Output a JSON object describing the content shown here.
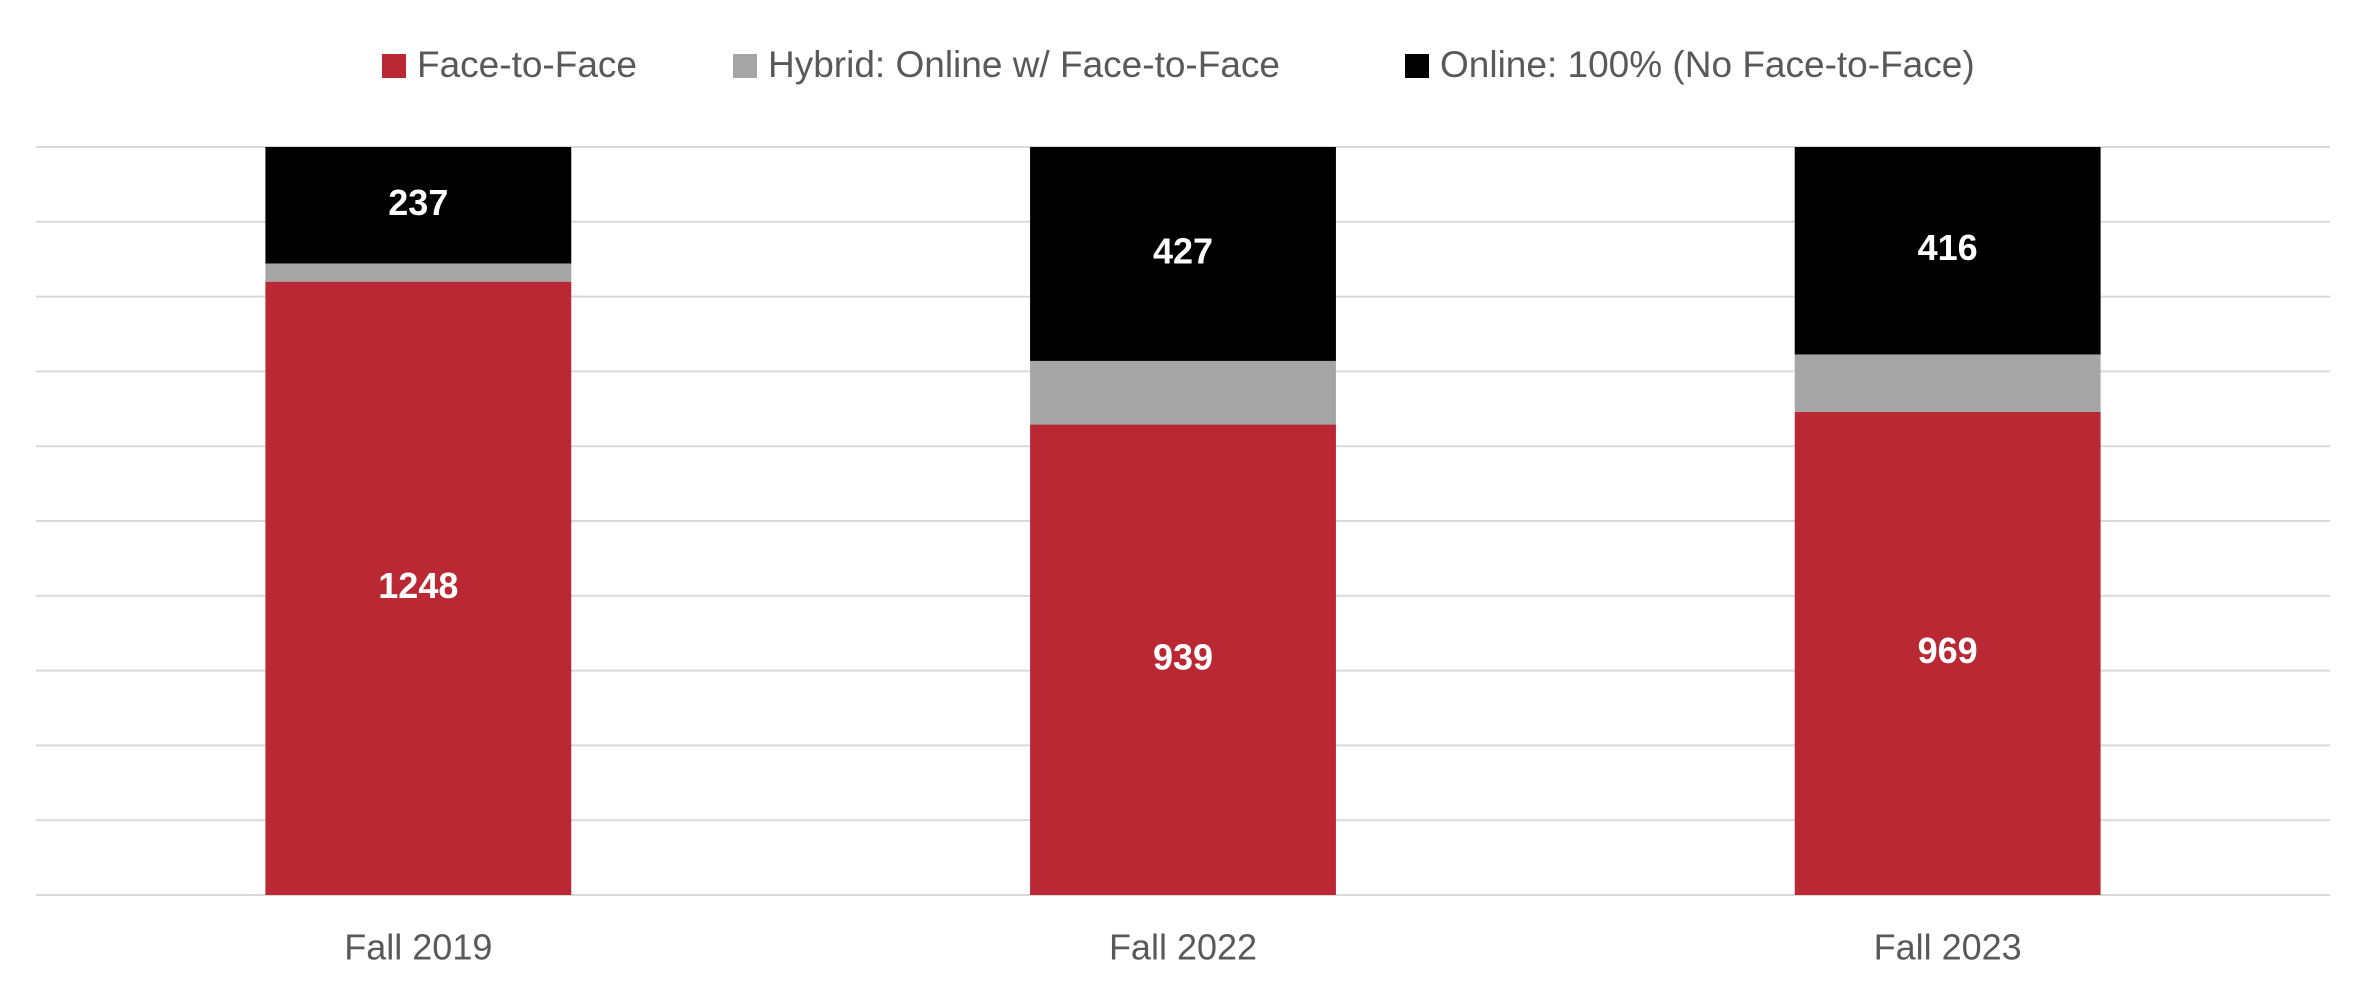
{
  "chart_data": {
    "type": "bar",
    "stacked": "percent",
    "categories": [
      "Fall 2019",
      "Fall 2022",
      "Fall 2023"
    ],
    "series": [
      {
        "name": "Face-to-Face",
        "color": "#b92833",
        "values": [
          1248,
          939,
          969
        ],
        "data_labels": true
      },
      {
        "name": "Hybrid: Online w/ Face-to-Face",
        "color": "#a5a5a5",
        "values": [
          37,
          127,
          115
        ],
        "data_labels": false
      },
      {
        "name": "Online: 100% (No Face-to-Face)",
        "color": "#000000",
        "values": [
          237,
          427,
          416
        ],
        "data_labels": true
      }
    ],
    "ylim": [
      0,
      100
    ],
    "yticks": [
      0,
      10,
      20,
      30,
      40,
      50,
      60,
      70,
      80,
      90,
      100
    ],
    "tick_labels": false,
    "grid": true,
    "legend": "top"
  }
}
